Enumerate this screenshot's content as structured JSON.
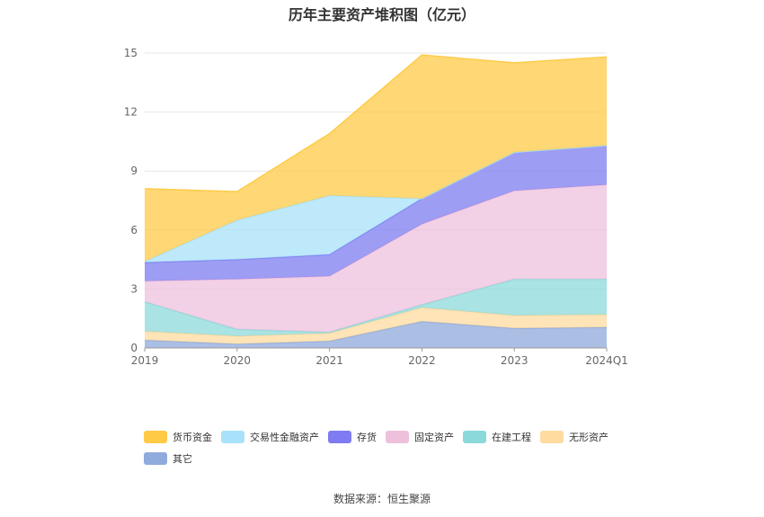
{
  "chart_data": {
    "type": "area",
    "stacked": true,
    "title": "历年主要资产堆积图（亿元）",
    "categories": [
      "2019",
      "2020",
      "2021",
      "2022",
      "2023",
      "2024Q1"
    ],
    "ylim": [
      0,
      15
    ],
    "yticks": [
      "0",
      "3",
      "6",
      "9",
      "12",
      "15"
    ],
    "grid": true,
    "legend_position": "bottom",
    "series": [
      {
        "name": "其它",
        "color": "#8faadc",
        "values": [
          0.4,
          0.2,
          0.35,
          1.35,
          1.0,
          1.05
        ]
      },
      {
        "name": "无形资产",
        "color": "#ffdba0",
        "values": [
          0.45,
          0.4,
          0.4,
          0.7,
          0.65,
          0.65
        ]
      },
      {
        "name": "在建工程",
        "color": "#8cd9d9",
        "values": [
          1.5,
          0.35,
          0.05,
          0.15,
          1.85,
          1.8
        ]
      },
      {
        "name": "固定资产",
        "color": "#eec0dc",
        "values": [
          1.05,
          2.55,
          2.85,
          4.1,
          4.5,
          4.8
        ]
      },
      {
        "name": "存货",
        "color": "#7e7cf0",
        "values": [
          0.95,
          1.0,
          1.1,
          1.3,
          1.95,
          2.0
        ]
      },
      {
        "name": "交易性金融资产",
        "color": "#a8e2fa",
        "values": [
          0.05,
          2.0,
          3.0,
          0.0,
          0.0,
          0.0
        ]
      },
      {
        "name": "货币资金",
        "color": "#ffcb47",
        "values": [
          3.7,
          1.45,
          3.15,
          7.3,
          4.55,
          4.5
        ]
      }
    ]
  },
  "legend_order": [
    "货币资金",
    "交易性金融资产",
    "存货",
    "固定资产",
    "在建工程",
    "无形资产",
    "其它"
  ],
  "source_note": "数据来源：恒生聚源"
}
